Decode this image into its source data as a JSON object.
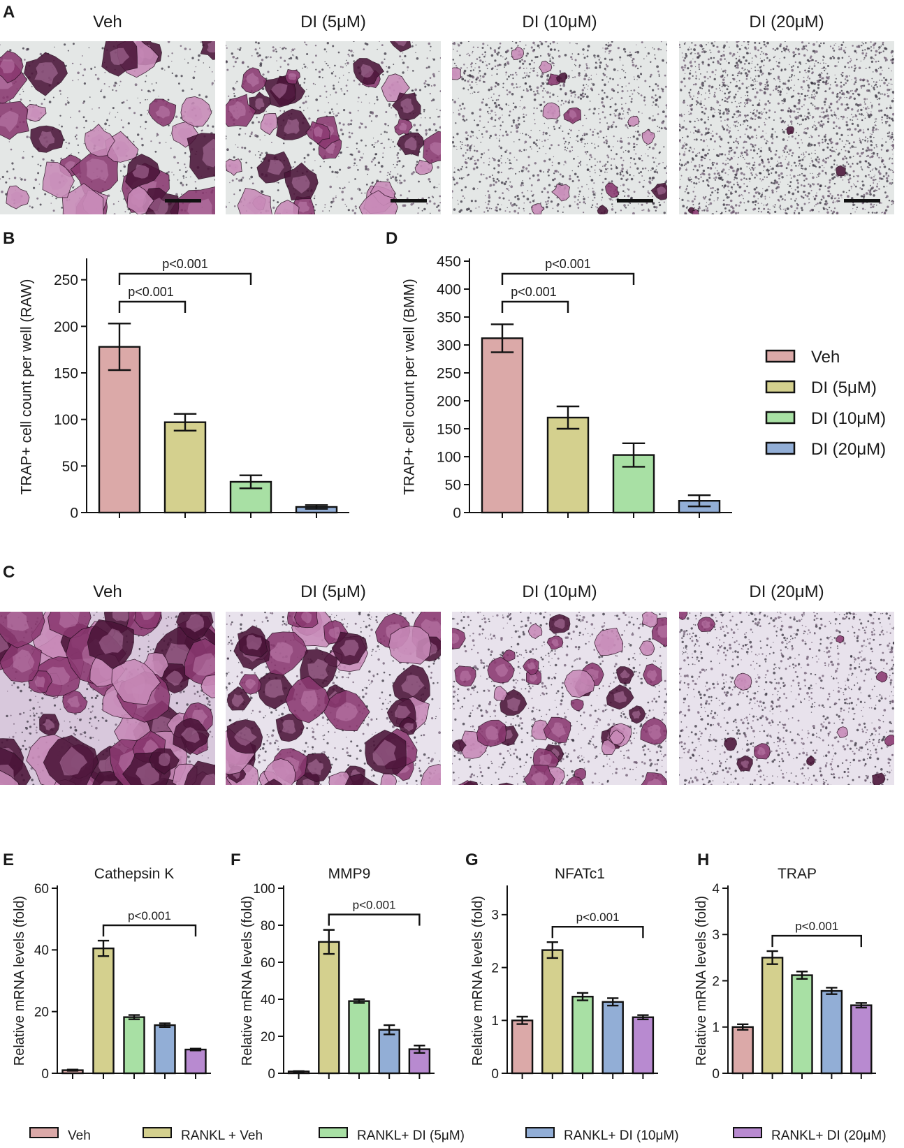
{
  "panels": {
    "A": "A",
    "B": "B",
    "C": "C",
    "D": "D",
    "E": "E",
    "F": "F",
    "G": "G",
    "H": "H"
  },
  "micro_labels": [
    "Veh",
    "DI (5μM)",
    "DI (10μM)",
    "DI (20μM)"
  ],
  "colors": {
    "veh": "#dba9a8",
    "di5": "#d4d08e",
    "di10": "#a8e0a4",
    "di20": "#92aed6",
    "di20_mrna": "#b88ad0",
    "stain_dark": "#4a1438",
    "stain_mid": "#8a3870",
    "stain_light": "#c88ab8",
    "background_a": "#e4e7e6",
    "background_c": "#e8e2ec"
  },
  "legend_bd": [
    "Veh",
    "DI (5μM)",
    "DI (10μM)",
    "DI (20μM)"
  ],
  "legend_mrna": [
    "Veh",
    "RANKL + Veh",
    "RANKL+ DI (5μM)",
    "RANKL+ DI (10μM)",
    "RANKL+ DI (20μM)"
  ],
  "chart_data": [
    {
      "id": "B",
      "type": "bar",
      "ylabel": "TRAP+ cell count per well (RAW)",
      "ylim": [
        0,
        270
      ],
      "yticks": [
        0,
        50,
        100,
        150,
        200,
        250
      ],
      "categories": [
        "Veh",
        "DI (5μM)",
        "DI (10μM)",
        "DI (20μM)"
      ],
      "values": [
        178,
        97,
        33,
        6
      ],
      "errors": [
        25,
        9,
        7,
        2
      ],
      "brackets": [
        {
          "from": 0,
          "to": 1,
          "label": "p<0.001",
          "level": 1
        },
        {
          "from": 0,
          "to": 2,
          "label": "p<0.001",
          "level": 2
        }
      ]
    },
    {
      "id": "D",
      "type": "bar",
      "ylabel": "TRAP+ cell count per well (BMM)",
      "ylim": [
        0,
        450
      ],
      "yticks": [
        0,
        50,
        100,
        150,
        200,
        250,
        300,
        350,
        400,
        450
      ],
      "categories": [
        "Veh",
        "DI (5μM)",
        "DI (10μM)",
        "DI (20μM)"
      ],
      "values": [
        312,
        170,
        103,
        21
      ],
      "errors": [
        25,
        20,
        21,
        10
      ],
      "brackets": [
        {
          "from": 0,
          "to": 1,
          "label": "p<0.001",
          "level": 1
        },
        {
          "from": 0,
          "to": 2,
          "label": "p<0.001",
          "level": 2
        }
      ]
    },
    {
      "id": "E",
      "type": "bar",
      "title": "Cathepsin K",
      "ylabel": "Relative mRNA levels (fold)",
      "ylim": [
        0,
        60
      ],
      "yticks": [
        0,
        20,
        40,
        60
      ],
      "categories": [
        "Veh",
        "RANKL + Veh",
        "RANKL+ DI (5μM)",
        "RANKL+ DI (10μM)",
        "RANKL+ DI (20μM)"
      ],
      "values": [
        1,
        40.5,
        18.2,
        15.6,
        7.7
      ],
      "errors": [
        0.2,
        2.5,
        0.7,
        0.6,
        0.3
      ],
      "brackets": [
        {
          "from": 1,
          "to": 4,
          "label": "p<0.001",
          "level": 1
        }
      ]
    },
    {
      "id": "F",
      "type": "bar",
      "title": "MMP9",
      "ylabel": "Relative mRNA levels (fold)",
      "ylim": [
        0,
        100
      ],
      "yticks": [
        0,
        20,
        40,
        60,
        80,
        100
      ],
      "categories": [
        "Veh",
        "RANKL + Veh",
        "RANKL+ DI (5μM)",
        "RANKL+ DI (10μM)",
        "RANKL+ DI (20μM)"
      ],
      "values": [
        1,
        71,
        39,
        23.5,
        13
      ],
      "errors": [
        0.2,
        6.5,
        1,
        2.5,
        2
      ],
      "brackets": [
        {
          "from": 1,
          "to": 4,
          "label": "p<0.001",
          "level": 1
        }
      ]
    },
    {
      "id": "G",
      "type": "bar",
      "title": "NFATc1",
      "ylabel": "Relative mRNA levels (fold)",
      "ylim": [
        0,
        3.5
      ],
      "yticks": [
        0,
        1,
        2,
        3
      ],
      "categories": [
        "Veh",
        "RANKL + Veh",
        "RANKL+ DI (5μM)",
        "RANKL+ DI (10μM)",
        "RANKL+ DI (20μM)"
      ],
      "values": [
        1,
        2.33,
        1.45,
        1.35,
        1.06
      ],
      "errors": [
        0.07,
        0.15,
        0.07,
        0.07,
        0.04
      ],
      "brackets": [
        {
          "from": 1,
          "to": 4,
          "label": "p<0.001",
          "level": 1
        }
      ]
    },
    {
      "id": "H",
      "type": "bar",
      "title": "TRAP",
      "ylabel": "Relative mRNA levels (fold)",
      "ylim": [
        0,
        4
      ],
      "yticks": [
        0,
        1,
        2,
        3,
        4
      ],
      "categories": [
        "Veh",
        "RANKL + Veh",
        "RANKL+ DI (5μM)",
        "RANKL+ DI (10μM)",
        "RANKL+ DI (20μM)"
      ],
      "values": [
        1,
        2.5,
        2.12,
        1.78,
        1.47
      ],
      "errors": [
        0.06,
        0.14,
        0.08,
        0.07,
        0.05
      ],
      "brackets": [
        {
          "from": 1,
          "to": 4,
          "label": "p<0.001",
          "level": 1
        }
      ]
    }
  ]
}
